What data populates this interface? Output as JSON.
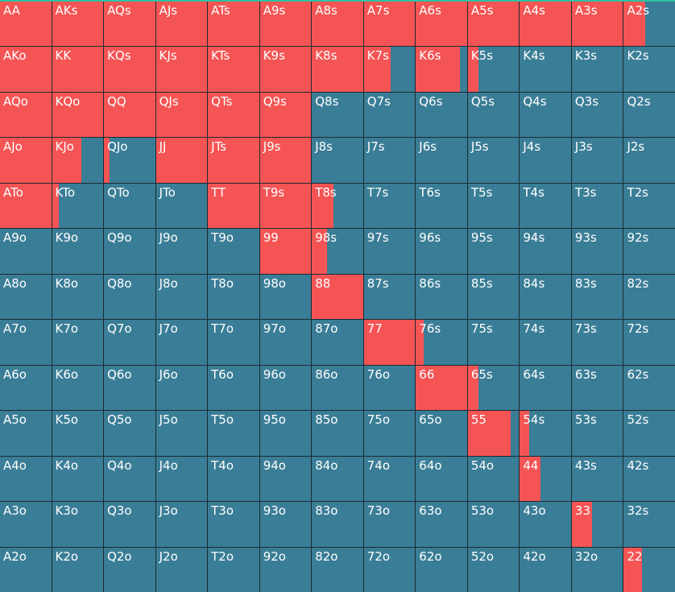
{
  "colors": {
    "raise": "#f55454",
    "fold": "#3a7d96",
    "grid_line": "#1c2a34",
    "top_accent": "#2ec1a0"
  },
  "grid": {
    "rows": [
      [
        {
          "hand": "AA",
          "raise_pct": 100
        },
        {
          "hand": "AKs",
          "raise_pct": 100
        },
        {
          "hand": "AQs",
          "raise_pct": 100
        },
        {
          "hand": "AJs",
          "raise_pct": 100
        },
        {
          "hand": "ATs",
          "raise_pct": 100
        },
        {
          "hand": "A9s",
          "raise_pct": 100
        },
        {
          "hand": "A8s",
          "raise_pct": 100
        },
        {
          "hand": "A7s",
          "raise_pct": 100
        },
        {
          "hand": "A6s",
          "raise_pct": 100
        },
        {
          "hand": "A5s",
          "raise_pct": 100
        },
        {
          "hand": "A4s",
          "raise_pct": 100
        },
        {
          "hand": "A3s",
          "raise_pct": 100
        },
        {
          "hand": "A2s",
          "raise_pct": 42
        }
      ],
      [
        {
          "hand": "AKo",
          "raise_pct": 100
        },
        {
          "hand": "KK",
          "raise_pct": 100
        },
        {
          "hand": "KQs",
          "raise_pct": 100
        },
        {
          "hand": "KJs",
          "raise_pct": 100
        },
        {
          "hand": "KTs",
          "raise_pct": 100
        },
        {
          "hand": "K9s",
          "raise_pct": 100
        },
        {
          "hand": "K8s",
          "raise_pct": 100
        },
        {
          "hand": "K7s",
          "raise_pct": 52
        },
        {
          "hand": "K6s",
          "raise_pct": 86
        },
        {
          "hand": "K5s",
          "raise_pct": 20
        },
        {
          "hand": "K4s",
          "raise_pct": 0
        },
        {
          "hand": "K3s",
          "raise_pct": 0
        },
        {
          "hand": "K2s",
          "raise_pct": 0
        }
      ],
      [
        {
          "hand": "AQo",
          "raise_pct": 100
        },
        {
          "hand": "KQo",
          "raise_pct": 100
        },
        {
          "hand": "QQ",
          "raise_pct": 100
        },
        {
          "hand": "QJs",
          "raise_pct": 100
        },
        {
          "hand": "QTs",
          "raise_pct": 100
        },
        {
          "hand": "Q9s",
          "raise_pct": 100
        },
        {
          "hand": "Q8s",
          "raise_pct": 0
        },
        {
          "hand": "Q7s",
          "raise_pct": 0
        },
        {
          "hand": "Q6s",
          "raise_pct": 0
        },
        {
          "hand": "Q5s",
          "raise_pct": 0
        },
        {
          "hand": "Q4s",
          "raise_pct": 0
        },
        {
          "hand": "Q3s",
          "raise_pct": 0
        },
        {
          "hand": "Q2s",
          "raise_pct": 0
        }
      ],
      [
        {
          "hand": "AJo",
          "raise_pct": 100
        },
        {
          "hand": "KJo",
          "raise_pct": 58
        },
        {
          "hand": "QJo",
          "raise_pct": 11
        },
        {
          "hand": "JJ",
          "raise_pct": 100
        },
        {
          "hand": "JTs",
          "raise_pct": 100
        },
        {
          "hand": "J9s",
          "raise_pct": 100
        },
        {
          "hand": "J8s",
          "raise_pct": 0
        },
        {
          "hand": "J7s",
          "raise_pct": 0
        },
        {
          "hand": "J6s",
          "raise_pct": 0
        },
        {
          "hand": "J5s",
          "raise_pct": 0
        },
        {
          "hand": "J4s",
          "raise_pct": 0
        },
        {
          "hand": "J3s",
          "raise_pct": 0
        },
        {
          "hand": "J2s",
          "raise_pct": 0
        }
      ],
      [
        {
          "hand": "ATo",
          "raise_pct": 100
        },
        {
          "hand": "KTo",
          "raise_pct": 14
        },
        {
          "hand": "QTo",
          "raise_pct": 0
        },
        {
          "hand": "JTo",
          "raise_pct": 0
        },
        {
          "hand": "TT",
          "raise_pct": 100
        },
        {
          "hand": "T9s",
          "raise_pct": 100
        },
        {
          "hand": "T8s",
          "raise_pct": 42
        },
        {
          "hand": "T7s",
          "raise_pct": 0
        },
        {
          "hand": "T6s",
          "raise_pct": 0
        },
        {
          "hand": "T5s",
          "raise_pct": 0
        },
        {
          "hand": "T4s",
          "raise_pct": 0
        },
        {
          "hand": "T3s",
          "raise_pct": 0
        },
        {
          "hand": "T2s",
          "raise_pct": 0
        }
      ],
      [
        {
          "hand": "A9o",
          "raise_pct": 0
        },
        {
          "hand": "K9o",
          "raise_pct": 0
        },
        {
          "hand": "Q9o",
          "raise_pct": 0
        },
        {
          "hand": "J9o",
          "raise_pct": 0
        },
        {
          "hand": "T9o",
          "raise_pct": 0
        },
        {
          "hand": "99",
          "raise_pct": 100
        },
        {
          "hand": "98s",
          "raise_pct": 30
        },
        {
          "hand": "97s",
          "raise_pct": 0
        },
        {
          "hand": "96s",
          "raise_pct": 0
        },
        {
          "hand": "95s",
          "raise_pct": 0
        },
        {
          "hand": "94s",
          "raise_pct": 0
        },
        {
          "hand": "93s",
          "raise_pct": 0
        },
        {
          "hand": "92s",
          "raise_pct": 0
        }
      ],
      [
        {
          "hand": "A8o",
          "raise_pct": 0
        },
        {
          "hand": "K8o",
          "raise_pct": 0
        },
        {
          "hand": "Q8o",
          "raise_pct": 0
        },
        {
          "hand": "J8o",
          "raise_pct": 0
        },
        {
          "hand": "T8o",
          "raise_pct": 0
        },
        {
          "hand": "98o",
          "raise_pct": 0
        },
        {
          "hand": "88",
          "raise_pct": 100
        },
        {
          "hand": "87s",
          "raise_pct": 0
        },
        {
          "hand": "86s",
          "raise_pct": 0
        },
        {
          "hand": "85s",
          "raise_pct": 0
        },
        {
          "hand": "84s",
          "raise_pct": 0
        },
        {
          "hand": "83s",
          "raise_pct": 0
        },
        {
          "hand": "82s",
          "raise_pct": 0
        }
      ],
      [
        {
          "hand": "A7o",
          "raise_pct": 0
        },
        {
          "hand": "K7o",
          "raise_pct": 0
        },
        {
          "hand": "Q7o",
          "raise_pct": 0
        },
        {
          "hand": "J7o",
          "raise_pct": 0
        },
        {
          "hand": "T7o",
          "raise_pct": 0
        },
        {
          "hand": "97o",
          "raise_pct": 0
        },
        {
          "hand": "87o",
          "raise_pct": 0
        },
        {
          "hand": "77",
          "raise_pct": 100
        },
        {
          "hand": "76s",
          "raise_pct": 16
        },
        {
          "hand": "75s",
          "raise_pct": 0
        },
        {
          "hand": "74s",
          "raise_pct": 0
        },
        {
          "hand": "73s",
          "raise_pct": 0
        },
        {
          "hand": "72s",
          "raise_pct": 0
        }
      ],
      [
        {
          "hand": "A6o",
          "raise_pct": 0
        },
        {
          "hand": "K6o",
          "raise_pct": 0
        },
        {
          "hand": "Q6o",
          "raise_pct": 0
        },
        {
          "hand": "J6o",
          "raise_pct": 0
        },
        {
          "hand": "T6o",
          "raise_pct": 0
        },
        {
          "hand": "96o",
          "raise_pct": 0
        },
        {
          "hand": "86o",
          "raise_pct": 0
        },
        {
          "hand": "76o",
          "raise_pct": 0
        },
        {
          "hand": "66",
          "raise_pct": 100
        },
        {
          "hand": "65s",
          "raise_pct": 20
        },
        {
          "hand": "64s",
          "raise_pct": 0
        },
        {
          "hand": "63s",
          "raise_pct": 0
        },
        {
          "hand": "62s",
          "raise_pct": 0
        }
      ],
      [
        {
          "hand": "A5o",
          "raise_pct": 0
        },
        {
          "hand": "K5o",
          "raise_pct": 0
        },
        {
          "hand": "Q5o",
          "raise_pct": 0
        },
        {
          "hand": "J5o",
          "raise_pct": 0
        },
        {
          "hand": "T5o",
          "raise_pct": 0
        },
        {
          "hand": "95o",
          "raise_pct": 0
        },
        {
          "hand": "85o",
          "raise_pct": 0
        },
        {
          "hand": "75o",
          "raise_pct": 0
        },
        {
          "hand": "65o",
          "raise_pct": 0
        },
        {
          "hand": "55",
          "raise_pct": 83
        },
        {
          "hand": "54s",
          "raise_pct": 19
        },
        {
          "hand": "53s",
          "raise_pct": 0
        },
        {
          "hand": "52s",
          "raise_pct": 0
        }
      ],
      [
        {
          "hand": "A4o",
          "raise_pct": 0
        },
        {
          "hand": "K4o",
          "raise_pct": 0
        },
        {
          "hand": "Q4o",
          "raise_pct": 0
        },
        {
          "hand": "J4o",
          "raise_pct": 0
        },
        {
          "hand": "T4o",
          "raise_pct": 0
        },
        {
          "hand": "94o",
          "raise_pct": 0
        },
        {
          "hand": "84o",
          "raise_pct": 0
        },
        {
          "hand": "74o",
          "raise_pct": 0
        },
        {
          "hand": "64o",
          "raise_pct": 0
        },
        {
          "hand": "54o",
          "raise_pct": 0
        },
        {
          "hand": "44",
          "raise_pct": 41
        },
        {
          "hand": "43s",
          "raise_pct": 0
        },
        {
          "hand": "42s",
          "raise_pct": 0
        }
      ],
      [
        {
          "hand": "A3o",
          "raise_pct": 0
        },
        {
          "hand": "K3o",
          "raise_pct": 0
        },
        {
          "hand": "Q3o",
          "raise_pct": 0
        },
        {
          "hand": "J3o",
          "raise_pct": 0
        },
        {
          "hand": "T3o",
          "raise_pct": 0
        },
        {
          "hand": "93o",
          "raise_pct": 0
        },
        {
          "hand": "83o",
          "raise_pct": 0
        },
        {
          "hand": "73o",
          "raise_pct": 0
        },
        {
          "hand": "63o",
          "raise_pct": 0
        },
        {
          "hand": "53o",
          "raise_pct": 0
        },
        {
          "hand": "43o",
          "raise_pct": 0
        },
        {
          "hand": "33",
          "raise_pct": 39
        },
        {
          "hand": "32s",
          "raise_pct": 0
        }
      ],
      [
        {
          "hand": "A2o",
          "raise_pct": 0
        },
        {
          "hand": "K2o",
          "raise_pct": 0
        },
        {
          "hand": "Q2o",
          "raise_pct": 0
        },
        {
          "hand": "J2o",
          "raise_pct": 0
        },
        {
          "hand": "T2o",
          "raise_pct": 0
        },
        {
          "hand": "92o",
          "raise_pct": 0
        },
        {
          "hand": "82o",
          "raise_pct": 0
        },
        {
          "hand": "72o",
          "raise_pct": 0
        },
        {
          "hand": "62o",
          "raise_pct": 0
        },
        {
          "hand": "52o",
          "raise_pct": 0
        },
        {
          "hand": "42o",
          "raise_pct": 0
        },
        {
          "hand": "32o",
          "raise_pct": 0
        },
        {
          "hand": "22",
          "raise_pct": 36
        }
      ]
    ]
  }
}
